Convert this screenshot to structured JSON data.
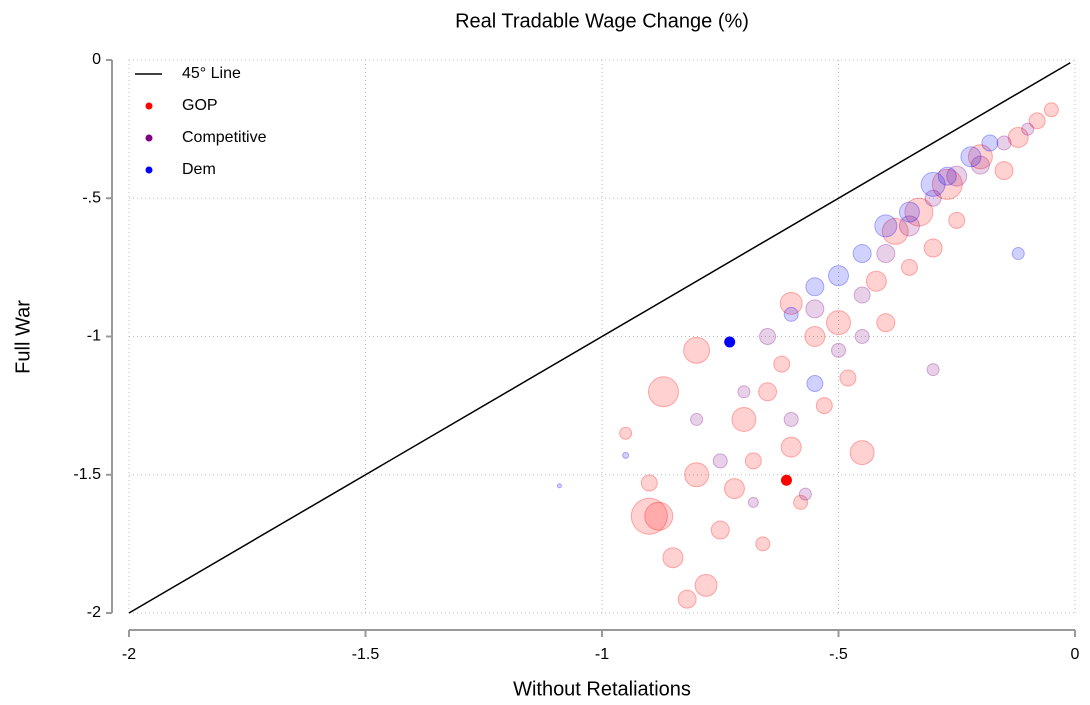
{
  "chart_data": {
    "type": "scatter",
    "title": "Real Tradable Wage Change (%)",
    "x_label": "Without Retaliations",
    "y_label": "Full War",
    "xlim": [
      -2,
      0
    ],
    "ylim": [
      -2,
      0
    ],
    "xticks": [
      -2,
      -1.5,
      -1,
      {
        "value": -0.5,
        "label": "-.5"
      },
      0
    ],
    "yticks": [
      -2,
      -1.5,
      -1,
      {
        "value": -0.5,
        "label": "-.5"
      },
      0
    ],
    "grid": true,
    "legend": "upper left",
    "series": [
      {
        "name": "45° Line",
        "type": "line",
        "color": "#000000",
        "x": [
          -2,
          -0.01
        ],
        "values": [
          -2,
          -0.01
        ]
      },
      {
        "name": "GOP",
        "color": "#ff0000",
        "highlight_index": 38,
        "x": [
          -0.95,
          -0.9,
          -0.88,
          -0.85,
          -0.82,
          -0.8,
          -0.78,
          -0.75,
          -0.72,
          -0.7,
          -0.68,
          -0.66,
          -0.65,
          -0.62,
          -0.6,
          -0.58,
          -0.55,
          -0.53,
          -0.5,
          -0.48,
          -0.45,
          -0.42,
          -0.4,
          -0.38,
          -0.35,
          -0.33,
          -0.3,
          -0.27,
          -0.25,
          -0.2,
          -0.15,
          -0.12,
          -0.08,
          -0.05,
          -0.6,
          -0.8,
          -0.87,
          -0.9,
          -0.61
        ],
        "values": [
          -1.35,
          -1.53,
          -1.65,
          -1.8,
          -1.95,
          -1.5,
          -1.9,
          -1.7,
          -1.55,
          -1.3,
          -1.45,
          -1.75,
          -1.2,
          -1.1,
          -1.4,
          -1.6,
          -1.0,
          -1.25,
          -0.95,
          -1.15,
          -1.42,
          -0.8,
          -0.95,
          -0.62,
          -0.75,
          -0.55,
          -0.68,
          -0.45,
          -0.58,
          -0.35,
          -0.4,
          -0.28,
          -0.22,
          -0.18,
          -0.88,
          -1.05,
          -1.2,
          -1.65,
          -1.52
        ],
        "sizes": [
          6,
          8,
          14,
          10,
          9,
          12,
          11,
          9,
          10,
          12,
          8,
          7,
          9,
          8,
          10,
          7,
          10,
          8,
          12,
          8,
          12,
          10,
          9,
          13,
          8,
          14,
          9,
          15,
          8,
          12,
          9,
          10,
          8,
          7,
          11,
          13,
          15,
          18,
          5
        ]
      },
      {
        "name": "Competitive",
        "color": "#800080",
        "x": [
          -0.8,
          -0.75,
          -0.7,
          -0.65,
          -0.6,
          -0.55,
          -0.5,
          -0.45,
          -0.4,
          -0.35,
          -0.3,
          -0.25,
          -0.2,
          -0.15,
          -0.1,
          -0.57,
          -0.3,
          -0.45,
          -0.68
        ],
        "values": [
          -1.3,
          -1.45,
          -1.2,
          -1.0,
          -1.3,
          -0.9,
          -1.05,
          -0.85,
          -0.7,
          -0.6,
          -0.5,
          -0.42,
          -0.38,
          -0.3,
          -0.25,
          -1.57,
          -1.12,
          -1.0,
          -1.6
        ],
        "sizes": [
          6,
          7,
          6,
          8,
          7,
          9,
          7,
          8,
          9,
          10,
          8,
          10,
          9,
          7,
          6,
          6,
          6,
          7,
          5
        ]
      },
      {
        "name": "Dem",
        "color": "#0000ff",
        "highlight_index": 0,
        "x": [
          -0.73,
          -0.55,
          -0.5,
          -0.45,
          -0.4,
          -0.35,
          -0.3,
          -0.27,
          -0.22,
          -0.18,
          -0.12,
          -0.55,
          -0.95,
          -1.09,
          -0.6
        ],
        "values": [
          -1.02,
          -0.82,
          -0.78,
          -0.7,
          -0.6,
          -0.55,
          -0.45,
          -0.42,
          -0.35,
          -0.3,
          -0.7,
          -1.17,
          -1.43,
          -1.54,
          -0.92
        ],
        "sizes": [
          5,
          9,
          10,
          9,
          11,
          10,
          12,
          9,
          10,
          8,
          6,
          8,
          3,
          2,
          7
        ]
      }
    ]
  }
}
